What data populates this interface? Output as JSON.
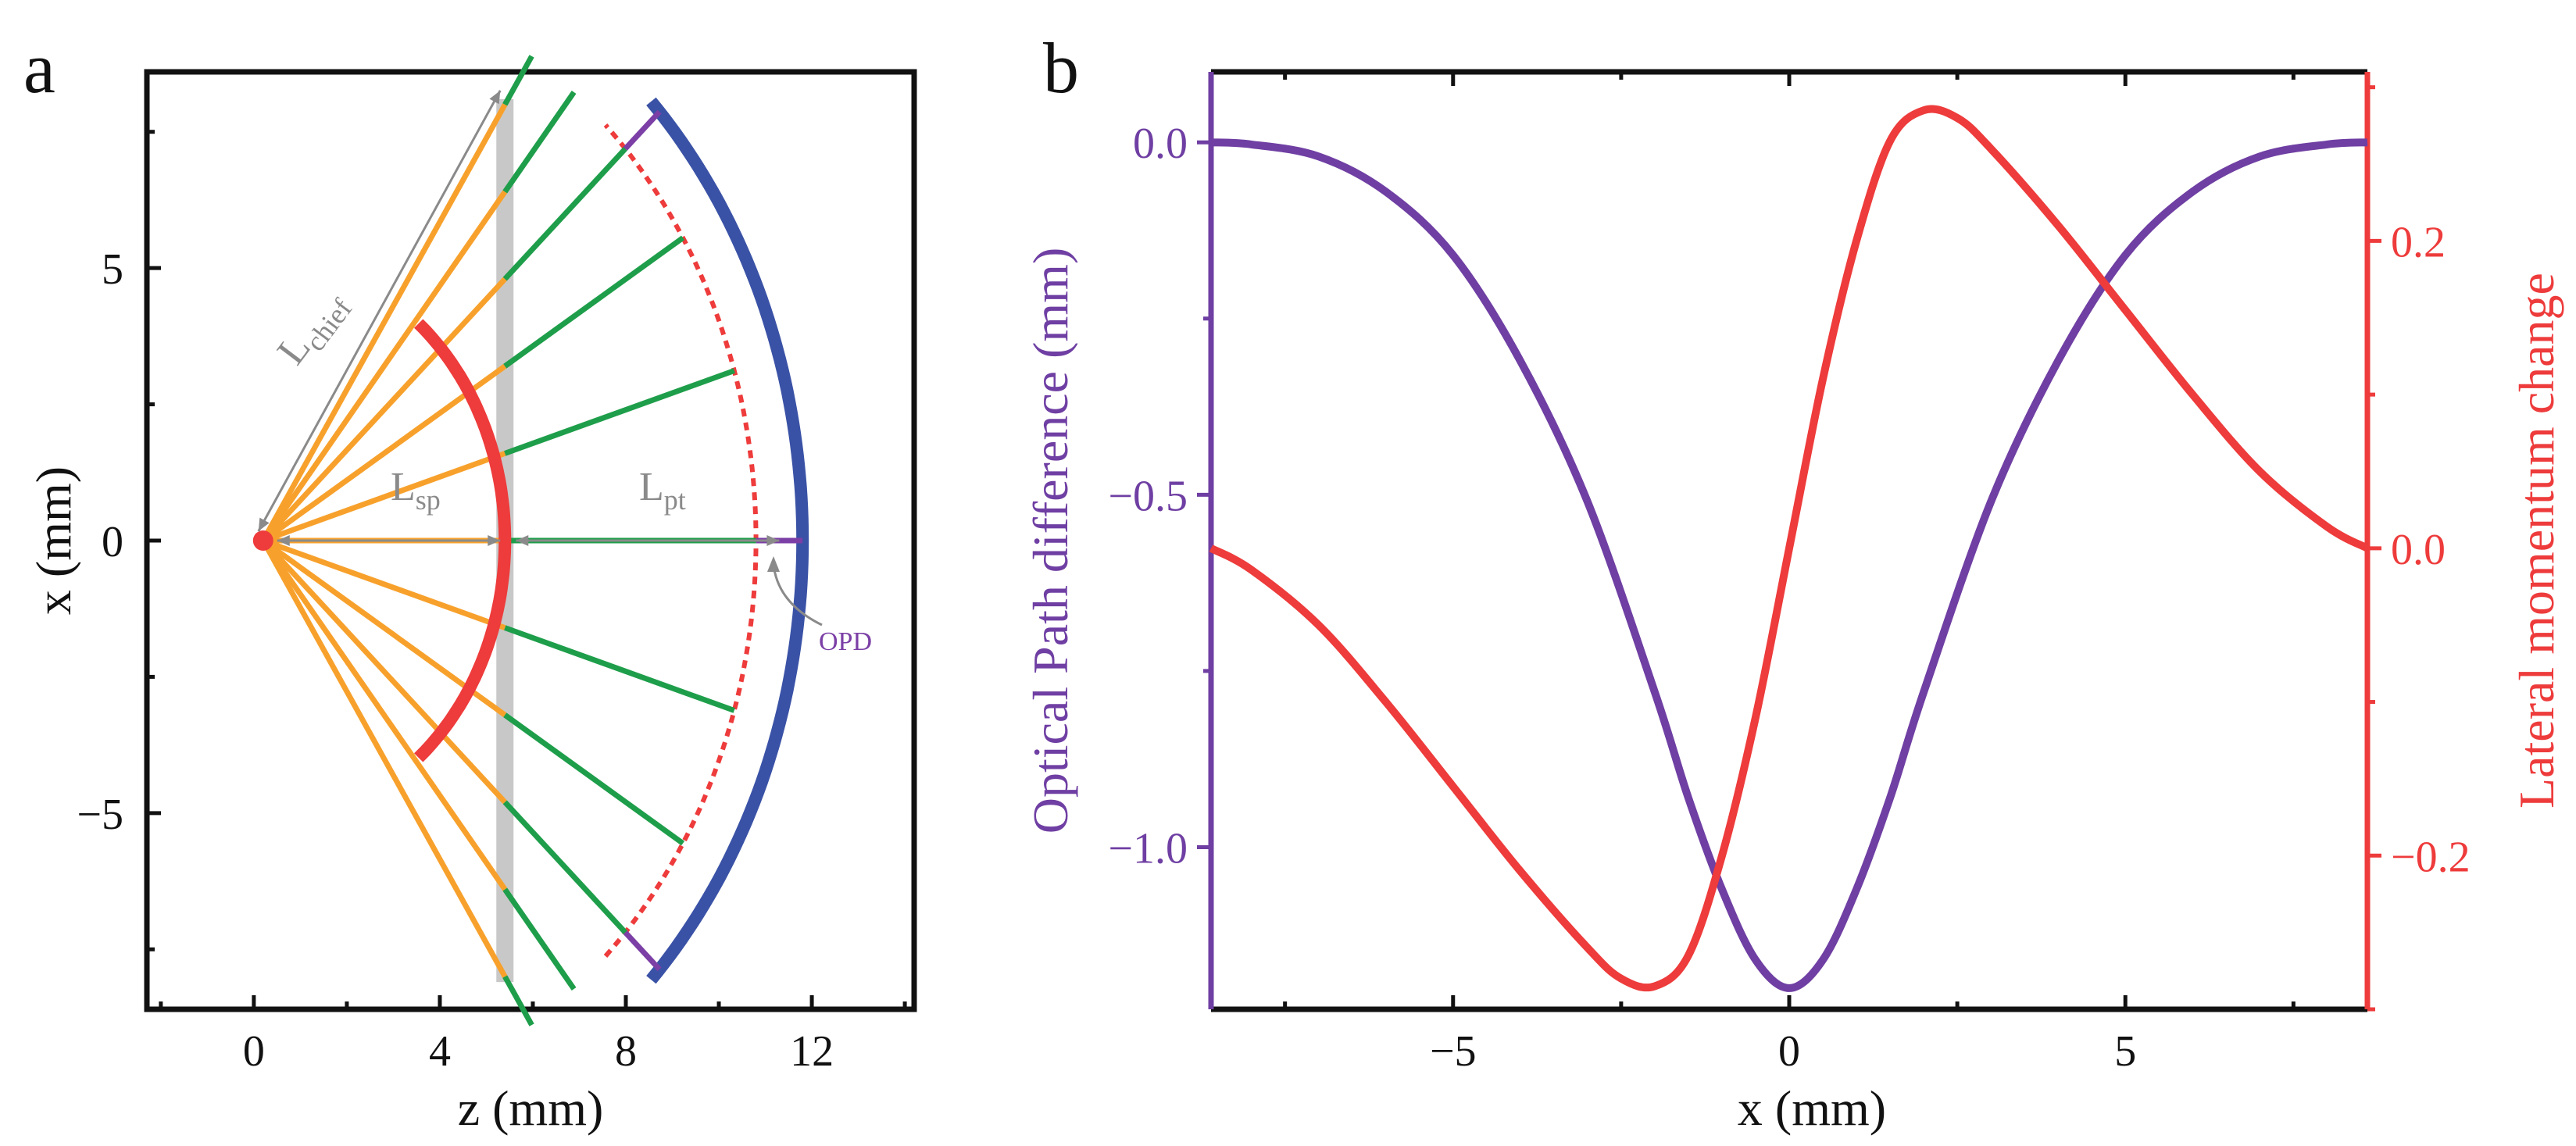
{
  "colors": {
    "purple": "#6f3fa3",
    "red": "#ee3b3b",
    "orange": "#f7a12c",
    "green": "#1e9e4a",
    "blue": "#3a52a6",
    "gray": "#c8c8c8",
    "annotation": "#8a8a8a",
    "opd_label": "#7b3fa6"
  },
  "chart_data": [
    {
      "panel_label": "a",
      "type": "diagram",
      "title": "",
      "xlabel": "z (mm)",
      "ylabel": "x (mm)",
      "xlim": [
        -2.3,
        14.2
      ],
      "ylim": [
        -8.6,
        8.6
      ],
      "xticks": [
        0,
        4,
        8,
        12
      ],
      "xtick_labels": [
        "0",
        "4",
        "8",
        "12"
      ],
      "yticks": [
        5,
        0,
        -5
      ],
      "ytick_labels": [
        "5",
        "0",
        "−5"
      ],
      "source_point": [
        0.2,
        0
      ],
      "rays_fan_x_at_plane": [
        8,
        6.4,
        4.8,
        3.2,
        1.6,
        0,
        -1.6,
        -3.2,
        -4.8,
        -6.4,
        -8
      ],
      "plane_z": 5.4,
      "red_arc": {
        "center_z": 0.2,
        "radius": 5.2,
        "angle_deg": 50
      },
      "blue_arc": {
        "center_z": 0.2,
        "radius": 11.6,
        "angle_deg": 44
      },
      "dashed_arc": {
        "center_z": 0.2,
        "radius": 10.6,
        "angle_deg": 46
      },
      "annotations": {
        "chief": {
          "main": "L",
          "sub": "chief"
        },
        "sp": {
          "main": "L",
          "sub": "sp"
        },
        "pt": {
          "main": "L",
          "sub": "pt"
        },
        "opd": "OPD"
      }
    },
    {
      "panel_label": "b",
      "type": "line",
      "title": "",
      "xlabel": "x (mm)",
      "ylabel_left": "Optical Path difference (mm)",
      "ylabel_right": "Lateral momentum change",
      "xlim": [
        -8.6,
        8.6
      ],
      "ylim_left": [
        -1.23,
        0.1
      ],
      "ylim_right": [
        -0.3,
        0.31
      ],
      "xticks": [
        -5,
        0,
        5
      ],
      "xtick_labels": [
        "−5",
        "0",
        "5"
      ],
      "yticks_left": [
        0.0,
        -0.5,
        -1.0
      ],
      "ytick_labels_left": [
        "0.0",
        "−0.5",
        "−1.0"
      ],
      "yticks_right": [
        0.2,
        0.0,
        -0.2
      ],
      "ytick_labels_right": [
        "0.2",
        "0.0",
        "−0.2"
      ],
      "series": [
        {
          "name": "Optical Path difference",
          "axis": "left",
          "color": "#6f3fa3",
          "x": [
            -8.6,
            -8,
            -7,
            -6,
            -5,
            -4,
            -3,
            -2,
            -1.5,
            -1,
            -0.5,
            0,
            0.5,
            1,
            1.5,
            2,
            3,
            4,
            5,
            6,
            7,
            8,
            8.6
          ],
          "y": [
            0.0,
            -0.003,
            -0.02,
            -0.07,
            -0.16,
            -0.31,
            -0.51,
            -0.78,
            -0.93,
            -1.06,
            -1.16,
            -1.2,
            -1.16,
            -1.06,
            -0.93,
            -0.78,
            -0.51,
            -0.31,
            -0.16,
            -0.07,
            -0.02,
            -0.003,
            0.0
          ]
        },
        {
          "name": "Lateral momentum change",
          "axis": "right",
          "color": "#ee3b3b",
          "x": [
            -8.6,
            -8,
            -7,
            -6,
            -5,
            -4,
            -3,
            -2.5,
            -2,
            -1.5,
            -1,
            -0.5,
            0,
            0.5,
            1,
            1.5,
            2,
            2.5,
            3,
            4,
            5,
            6,
            7,
            8,
            8.6
          ],
          "y": [
            0.0,
            -0.014,
            -0.05,
            -0.1,
            -0.155,
            -0.21,
            -0.26,
            -0.28,
            -0.285,
            -0.265,
            -0.2,
            -0.11,
            0.0,
            0.11,
            0.2,
            0.265,
            0.285,
            0.28,
            0.26,
            0.21,
            0.155,
            0.1,
            0.05,
            0.014,
            0.0
          ]
        }
      ]
    }
  ]
}
